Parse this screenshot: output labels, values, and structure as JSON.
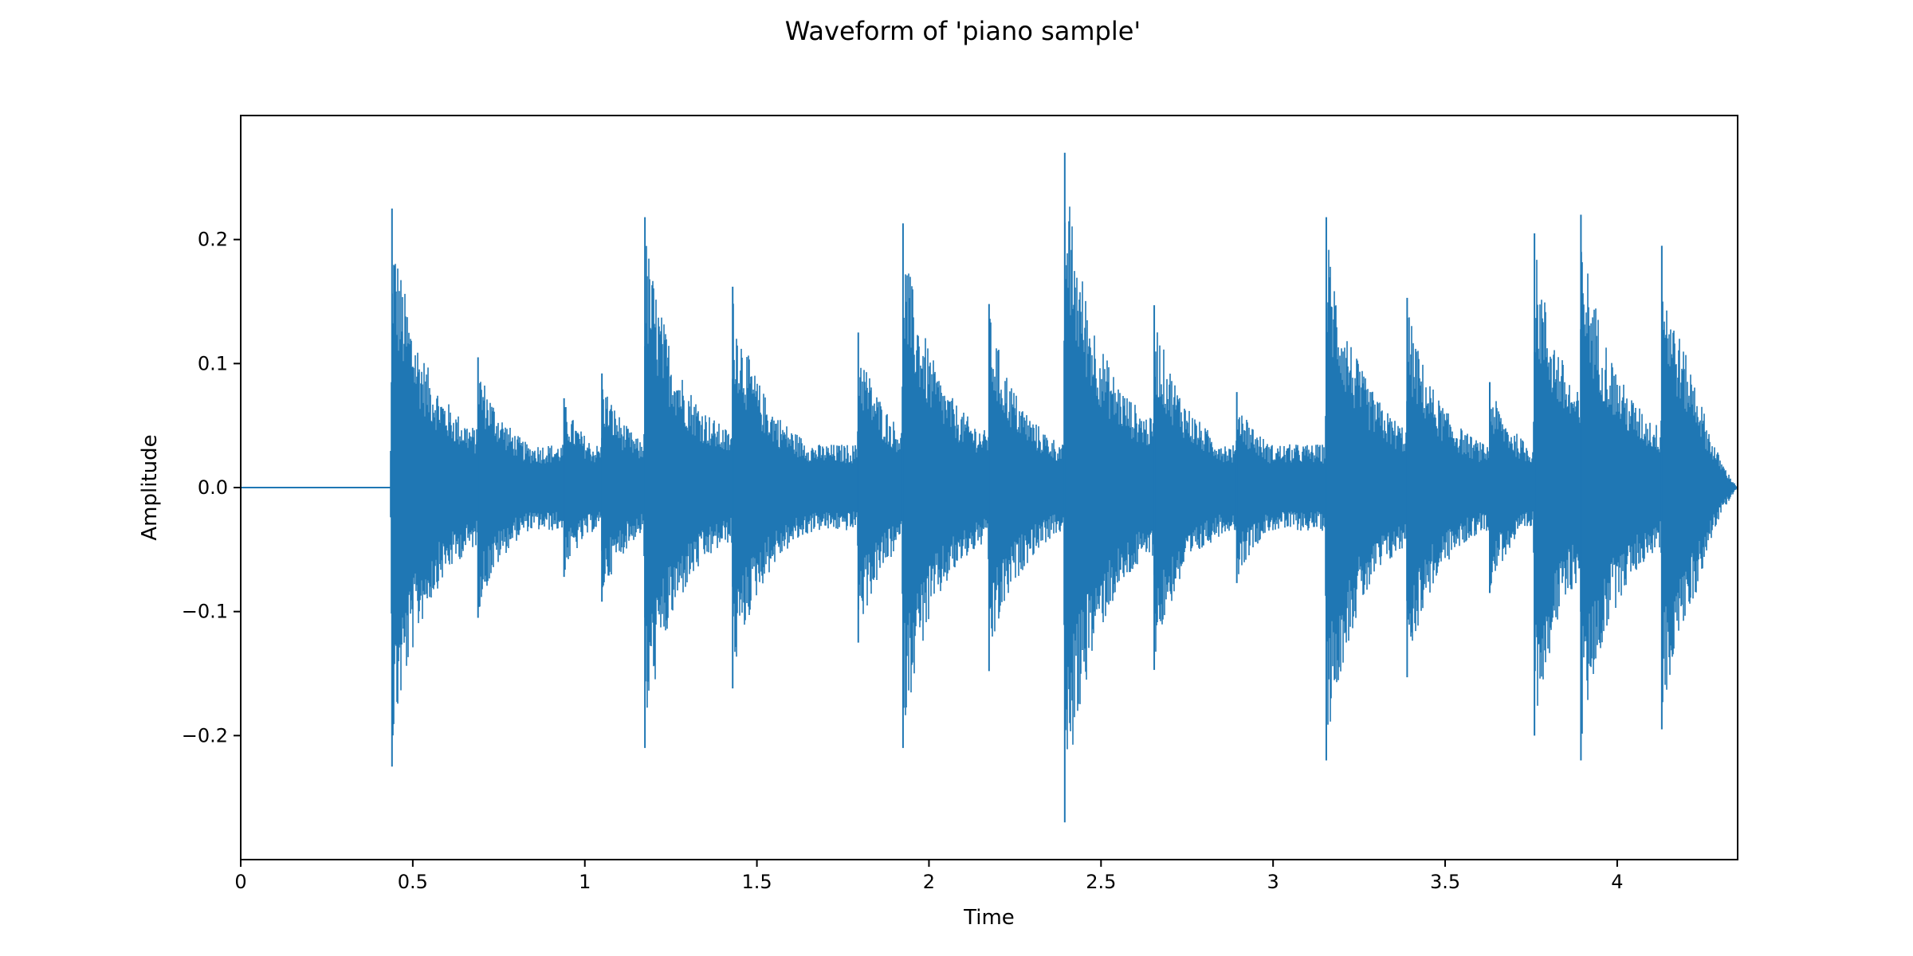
{
  "chart_data": {
    "type": "line",
    "title": "Waveform of 'piano sample'",
    "xlabel": "Time",
    "ylabel": "Amplitude",
    "xlim": [
      0,
      4.35
    ],
    "ylim": [
      -0.3,
      0.3
    ],
    "x_ticks": [
      0,
      0.5,
      1,
      1.5,
      2,
      2.5,
      3,
      3.5,
      4
    ],
    "x_tick_labels": [
      "0",
      "0.5",
      "1",
      "1.5",
      "2",
      "2.5",
      "3",
      "3.5",
      "4"
    ],
    "y_ticks": [
      0.2,
      0.1,
      0.0,
      -0.1,
      -0.2
    ],
    "y_tick_labels": [
      "0.2",
      "0.1",
      "0.0",
      "−0.1",
      "−0.2"
    ],
    "grid": false,
    "legend": "none",
    "series": [
      {
        "color": "#1f77b4",
        "silence_until": 0.435,
        "end_time": 4.35,
        "onsets": [
          {
            "t": 0.435,
            "peak_pos": 0.225,
            "peak_neg": -0.225
          },
          {
            "t": 0.685,
            "peak_pos": 0.105,
            "peak_neg": -0.105
          },
          {
            "t": 0.935,
            "peak_pos": 0.072,
            "peak_neg": -0.072
          },
          {
            "t": 1.045,
            "peak_pos": 0.092,
            "peak_neg": -0.092
          },
          {
            "t": 1.17,
            "peak_pos": 0.218,
            "peak_neg": -0.21
          },
          {
            "t": 1.425,
            "peak_pos": 0.162,
            "peak_neg": -0.162
          },
          {
            "t": 1.79,
            "peak_pos": 0.125,
            "peak_neg": -0.125
          },
          {
            "t": 1.92,
            "peak_pos": 0.213,
            "peak_neg": -0.21
          },
          {
            "t": 2.17,
            "peak_pos": 0.148,
            "peak_neg": -0.148
          },
          {
            "t": 2.39,
            "peak_pos": 0.27,
            "peak_neg": -0.27
          },
          {
            "t": 2.65,
            "peak_pos": 0.147,
            "peak_neg": -0.147
          },
          {
            "t": 2.89,
            "peak_pos": 0.077,
            "peak_neg": -0.077
          },
          {
            "t": 3.15,
            "peak_pos": 0.218,
            "peak_neg": -0.22
          },
          {
            "t": 3.385,
            "peak_pos": 0.153,
            "peak_neg": -0.153
          },
          {
            "t": 3.625,
            "peak_pos": 0.085,
            "peak_neg": -0.085
          },
          {
            "t": 3.755,
            "peak_pos": 0.205,
            "peak_neg": -0.2
          },
          {
            "t": 3.89,
            "peak_pos": 0.22,
            "peak_neg": -0.22
          },
          {
            "t": 4.125,
            "peak_pos": 0.195,
            "peak_neg": -0.195
          }
        ]
      }
    ]
  }
}
